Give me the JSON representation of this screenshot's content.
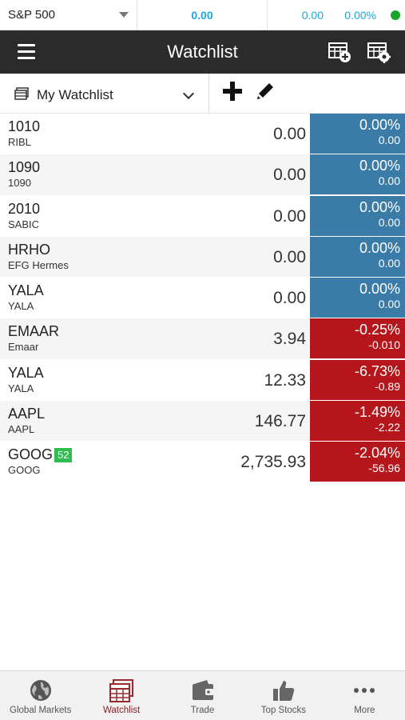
{
  "ticker": {
    "index_name": "S&P 500",
    "value": "0.00",
    "change": "0.00",
    "percent": "0.00%",
    "status_color": "#1aa52a"
  },
  "header": {
    "title": "Watchlist"
  },
  "toolbar": {
    "watchlist_name": "My Watchlist"
  },
  "colors": {
    "up": "#3a7ba8",
    "down": "#b5161b",
    "accent": "#8b1f24"
  },
  "rows": [
    {
      "symbol": "1010",
      "name": "RIBL",
      "price": "0.00",
      "pct": "0.00%",
      "abs": "0.00",
      "dir": "up",
      "badge": ""
    },
    {
      "symbol": "1090",
      "name": "1090",
      "price": "0.00",
      "pct": "0.00%",
      "abs": "0.00",
      "dir": "up",
      "badge": ""
    },
    {
      "symbol": "2010",
      "name": "SABIC",
      "price": "0.00",
      "pct": "0.00%",
      "abs": "0.00",
      "dir": "up",
      "badge": ""
    },
    {
      "symbol": "HRHO",
      "name": "EFG Hermes",
      "price": "0.00",
      "pct": "0.00%",
      "abs": "0.00",
      "dir": "up",
      "badge": ""
    },
    {
      "symbol": "YALA",
      "name": "YALA",
      "price": "0.00",
      "pct": "0.00%",
      "abs": "0.00",
      "dir": "up",
      "badge": ""
    },
    {
      "symbol": "EMAAR",
      "name": "Emaar",
      "price": "3.94",
      "pct": "-0.25%",
      "abs": "-0.010",
      "dir": "down",
      "badge": ""
    },
    {
      "symbol": "YALA",
      "name": "YALA",
      "price": "12.33",
      "pct": "-6.73%",
      "abs": "-0.89",
      "dir": "down",
      "badge": ""
    },
    {
      "symbol": "AAPL",
      "name": "AAPL",
      "price": "146.77",
      "pct": "-1.49%",
      "abs": "-2.22",
      "dir": "down",
      "badge": ""
    },
    {
      "symbol": "GOOG",
      "name": "GOOG",
      "price": "2,735.93",
      "pct": "-2.04%",
      "abs": "-56.96",
      "dir": "down",
      "badge": "52"
    }
  ],
  "nav": [
    {
      "label": "Global Markets",
      "icon": "globe-icon",
      "active": false
    },
    {
      "label": "Watchlist",
      "icon": "watchlist-icon",
      "active": true
    },
    {
      "label": "Trade",
      "icon": "wallet-icon",
      "active": false
    },
    {
      "label": "Top Stocks",
      "icon": "thumbs-up-icon",
      "active": false
    },
    {
      "label": "More",
      "icon": "more-icon",
      "active": false
    }
  ]
}
